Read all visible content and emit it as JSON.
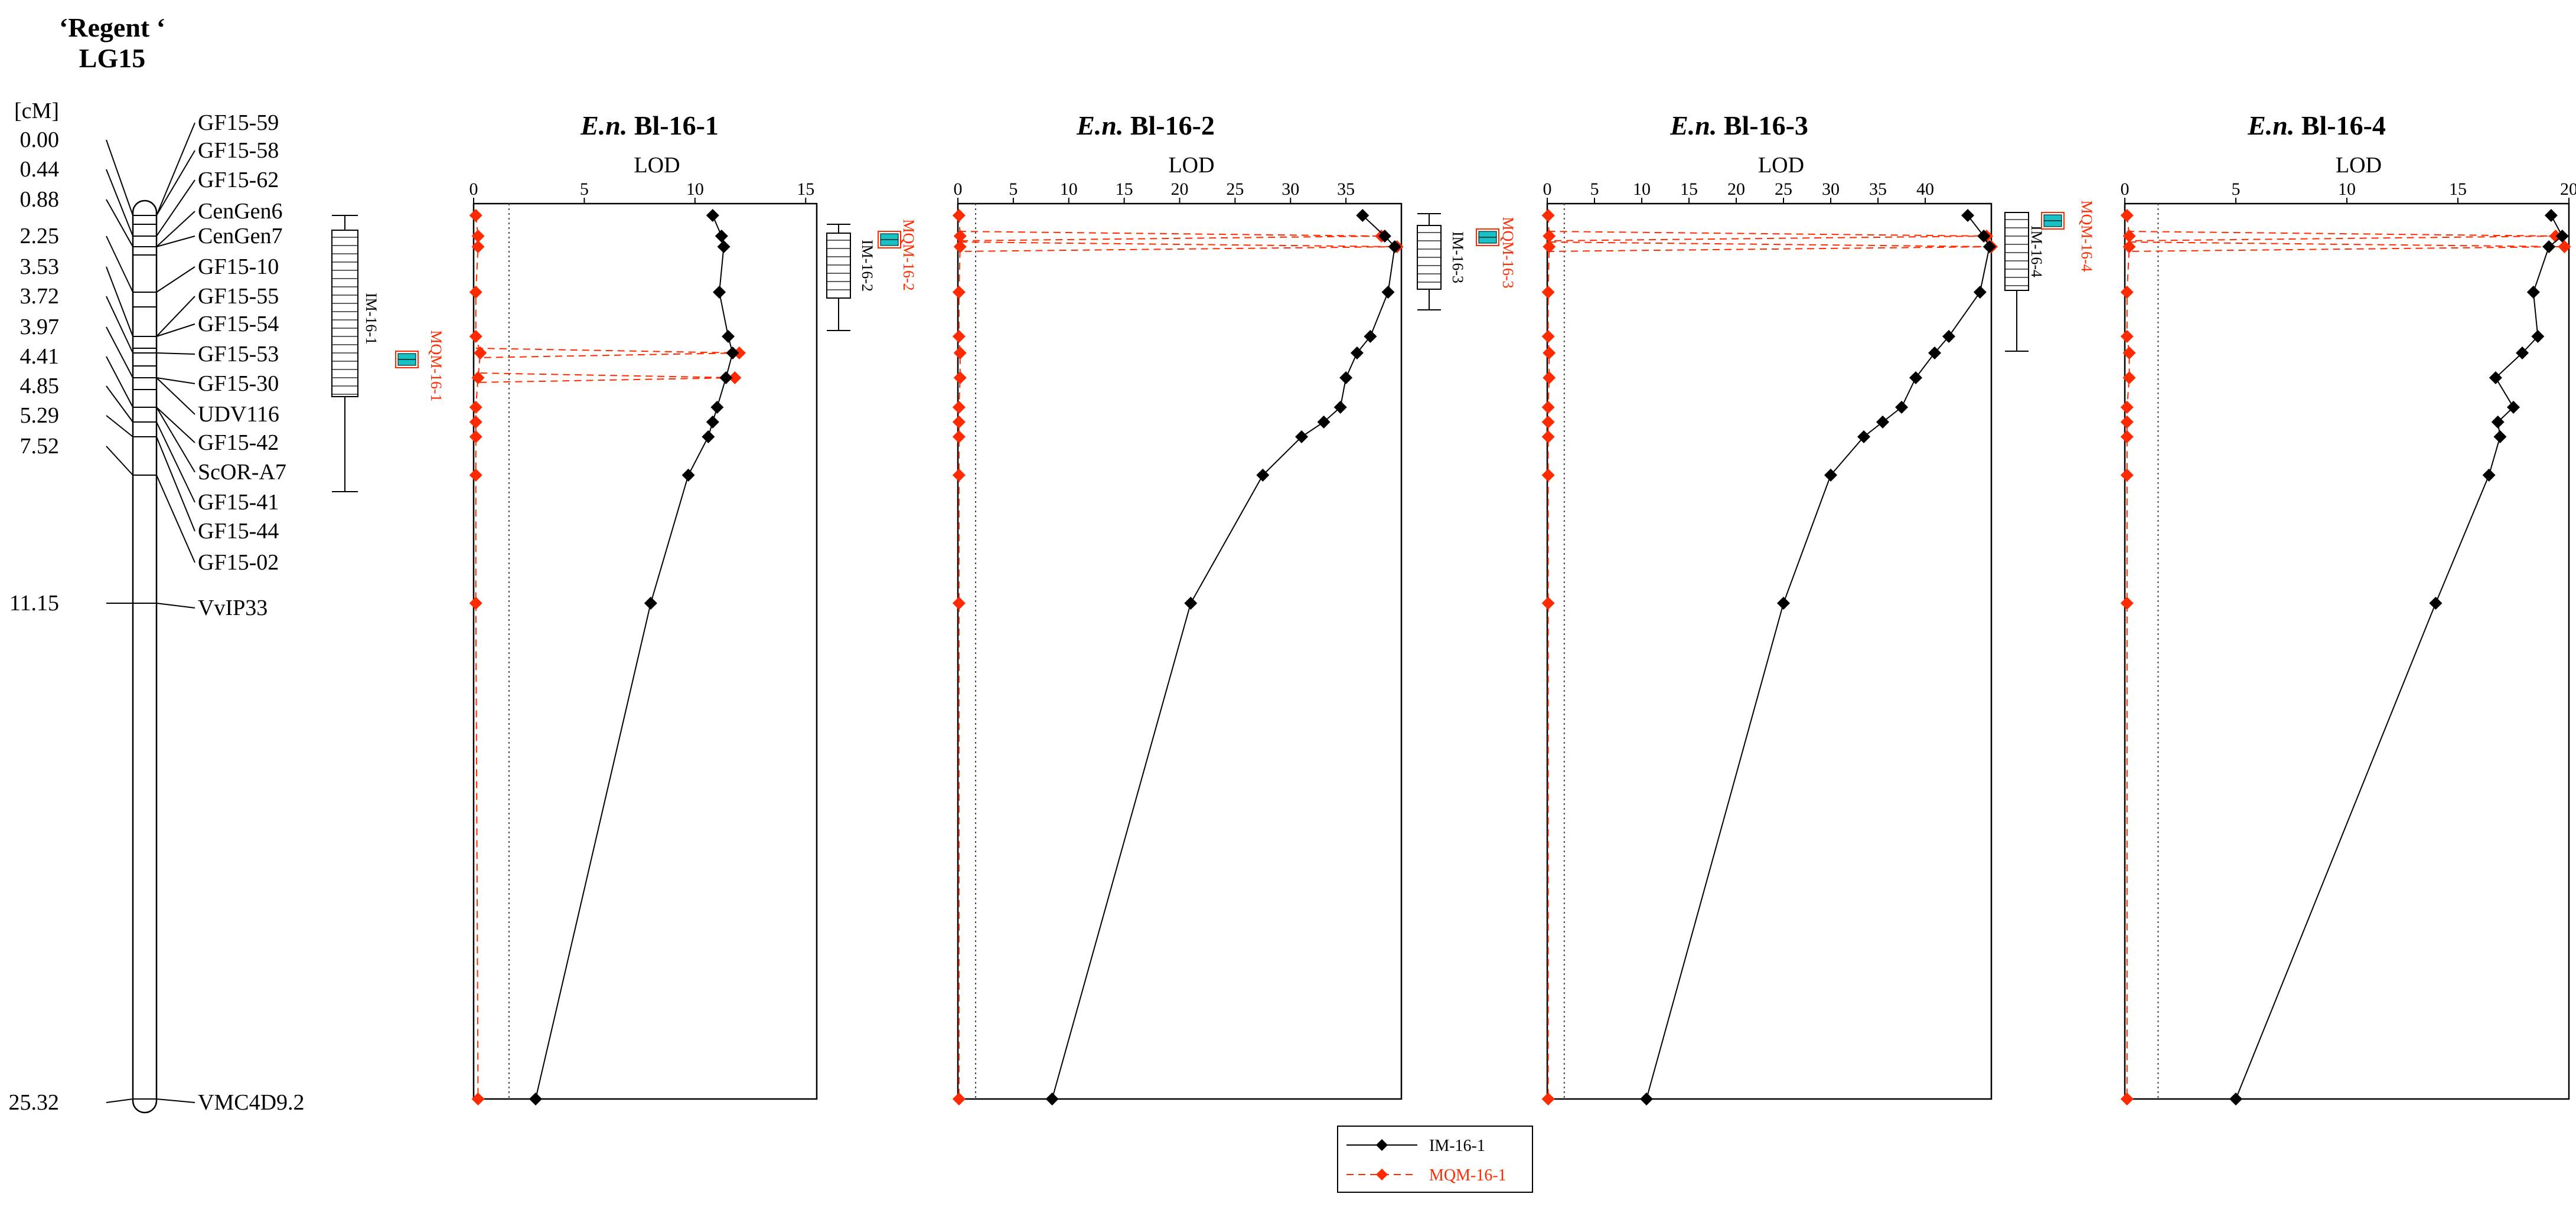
{
  "linkage_map": {
    "title_line1": "‘Regent ‘",
    "title_line2": "LG15",
    "unit_label": "[cM]",
    "markers": [
      {
        "name": "GF15-59",
        "cM": "0.00"
      },
      {
        "name": "GF15-58",
        "cM": "0.00"
      },
      {
        "name": "GF15-62",
        "cM": "0.44"
      },
      {
        "name": "CenGen6",
        "cM": "0.88"
      },
      {
        "name": "CenGen7",
        "cM": "0.88"
      },
      {
        "name": "GF15-10",
        "cM": "2.25"
      },
      {
        "name": "GF15-55",
        "cM": "3.53"
      },
      {
        "name": "GF15-54",
        "cM": "3.53"
      },
      {
        "name": "GF15-53",
        "cM": "3.72"
      },
      {
        "name": "GF15-30",
        "cM": "3.97"
      },
      {
        "name": "UDV116",
        "cM": "3.97"
      },
      {
        "name": "GF15-42",
        "cM": "4.41"
      },
      {
        "name": "ScOR-A7",
        "cM": "4.41"
      },
      {
        "name": "GF15-41",
        "cM": "4.85"
      },
      {
        "name": "GF15-44",
        "cM": "5.29"
      },
      {
        "name": "GF15-02",
        "cM": "7.52"
      },
      {
        "name": "VvIP33",
        "cM": "11.15"
      },
      {
        "name": "VMC4D9.2",
        "cM": "25.32"
      }
    ],
    "cm_labels": [
      "0.00",
      "0.44",
      "0.88",
      "2.25",
      "3.53",
      "3.72",
      "3.97",
      "4.41",
      "4.85",
      "5.29",
      "7.52",
      "11.15",
      "25.32"
    ],
    "qtl_im_label": "IM-16-1",
    "qtl_mqm_label": "MQM-16-1"
  },
  "chart_data": [
    {
      "type": "line",
      "title_italic": "E.n.",
      "title_rest": "Bl-16-1",
      "xlabel": "LOD",
      "xlim": [
        0,
        15.5
      ],
      "xticks": [
        "0",
        "5",
        "10",
        "15"
      ],
      "threshold": 1.6,
      "y_positions_cM": [
        0.0,
        0.44,
        0.88,
        2.25,
        3.53,
        3.72,
        3.97,
        4.41,
        4.85,
        5.29,
        7.52,
        11.15,
        25.32
      ],
      "series": [
        {
          "name": "IM-16-1",
          "values": [
            10.8,
            11.2,
            11.3,
            11.1,
            11.5,
            11.7,
            11.4,
            11.0,
            10.8,
            10.6,
            9.7,
            8.0,
            2.8
          ]
        },
        {
          "name": "MQM-16-1",
          "values": [
            0.1,
            0.2,
            0.2,
            0.1,
            0.1,
            0.3,
            0.2,
            0.1,
            0.1,
            0.1,
            0.1,
            0.1,
            0.2
          ]
        }
      ],
      "peak_mqm": [
        {
          "value": 12.0,
          "cM": 3.72
        },
        {
          "value": 11.8,
          "cM": 3.97
        }
      ],
      "qtl_im_label": "IM-16-1",
      "qtl_mqm_label": "MQM-16-1"
    },
    {
      "type": "line",
      "title_italic": "E.n.",
      "title_rest": "Bl-16-2",
      "xlabel": "LOD",
      "xlim": [
        0,
        40
      ],
      "xticks": [
        "0",
        "5",
        "10",
        "15",
        "20",
        "25",
        "30",
        "35"
      ],
      "threshold": 1.6,
      "y_positions_cM": [
        0.0,
        0.44,
        0.88,
        2.25,
        3.53,
        3.72,
        3.97,
        4.41,
        4.85,
        5.29,
        7.52,
        11.15,
        25.32
      ],
      "series": [
        {
          "name": "IM-16-1",
          "values": [
            36.5,
            38.5,
            39.4,
            38.8,
            37.2,
            36.0,
            35.0,
            34.5,
            33.0,
            31.0,
            27.5,
            21.0,
            8.5
          ]
        },
        {
          "name": "MQM-16-1",
          "values": [
            0.1,
            0.2,
            0.2,
            0.1,
            0.1,
            0.2,
            0.2,
            0.1,
            0.1,
            0.1,
            0.1,
            0.1,
            0.1
          ]
        }
      ],
      "peak_mqm": [
        {
          "value": 38.2,
          "cM": 0.44
        },
        {
          "value": 39.6,
          "cM": 0.88
        }
      ],
      "qtl_im_label": "IM-16-2",
      "qtl_mqm_label": "MQM-16-2"
    },
    {
      "type": "line",
      "title_italic": "E.n.",
      "title_rest": "Bl-16-3",
      "xlabel": "LOD",
      "xlim": [
        0,
        47
      ],
      "xticks": [
        "0",
        "5",
        "10",
        "15",
        "20",
        "25",
        "30",
        "35",
        "40"
      ],
      "threshold": 1.8,
      "y_positions_cM": [
        0.0,
        0.44,
        0.88,
        2.25,
        3.53,
        3.72,
        3.97,
        4.41,
        4.85,
        5.29,
        7.52,
        11.15,
        25.32
      ],
      "series": [
        {
          "name": "IM-16-3",
          "values": [
            44.5,
            46.2,
            46.8,
            45.8,
            42.5,
            41.0,
            39.0,
            37.5,
            35.5,
            33.5,
            30.0,
            25.0,
            10.5
          ]
        },
        {
          "name": "MQM-16-1",
          "values": [
            0.1,
            0.2,
            0.2,
            0.1,
            0.1,
            0.2,
            0.2,
            0.1,
            0.1,
            0.1,
            0.1,
            0.1,
            0.1
          ]
        }
      ],
      "peak_mqm": [
        {
          "value": 46.5,
          "cM": 0.44
        },
        {
          "value": 47.0,
          "cM": 0.88
        }
      ],
      "qtl_im_label": "IM-16-3",
      "qtl_mqm_label": "MQM-16-3"
    },
    {
      "type": "line",
      "title_italic": "E.n.",
      "title_rest": "Bl-16-4",
      "xlabel": "LOD",
      "xlim": [
        0,
        20
      ],
      "xticks": [
        "0",
        "5",
        "10",
        "15",
        "20"
      ],
      "threshold": 1.5,
      "y_positions_cM": [
        0.0,
        0.44,
        0.88,
        2.25,
        3.53,
        3.72,
        3.97,
        4.41,
        4.85,
        5.29,
        7.52,
        11.15,
        25.32
      ],
      "series": [
        {
          "name": "IM-16-4",
          "values": [
            19.2,
            19.7,
            19.1,
            18.4,
            18.6,
            17.9,
            16.7,
            17.5,
            16.8,
            16.9,
            16.4,
            14.0,
            5.0
          ]
        },
        {
          "name": "MQM-16-1",
          "values": [
            0.1,
            0.2,
            0.2,
            0.1,
            0.1,
            0.2,
            0.2,
            0.1,
            0.1,
            0.1,
            0.1,
            0.1,
            0.1
          ]
        }
      ],
      "peak_mqm": [
        {
          "value": 19.4,
          "cM": 0.44
        },
        {
          "value": 19.8,
          "cM": 0.88
        }
      ],
      "qtl_im_label": "IM-16-4",
      "qtl_mqm_label": "MQM-16-4"
    }
  ],
  "legend": {
    "items": [
      {
        "label": "IM-16-1",
        "color": "#000000",
        "dashed": false
      },
      {
        "label": "MQM-16-1",
        "color": "#ff2a00",
        "dashed": true
      }
    ]
  },
  "colors": {
    "im": "#000000",
    "mqm": "#ff2a00",
    "qtl_fill": "#17c1c4",
    "threshold": "#555555"
  }
}
